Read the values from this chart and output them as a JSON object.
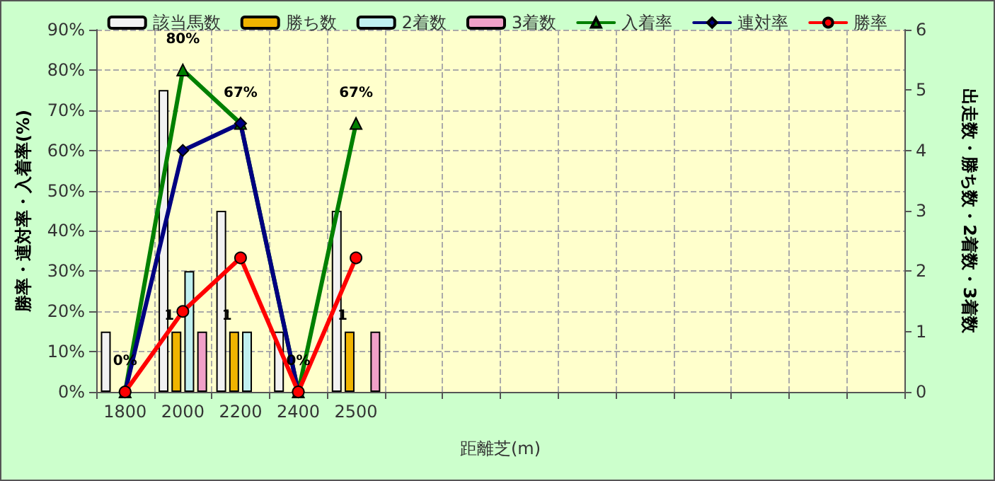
{
  "chart_data": {
    "type": "bar",
    "xlabel": "距離芝(m)",
    "ylabel": "勝率・連対率・入着率(%)",
    "y2label": "出走数・勝ち数・2着数・3着数",
    "categories": [
      "1800",
      "2000",
      "2200",
      "2400",
      "2500",
      null,
      null,
      null,
      null,
      null,
      null,
      null,
      null,
      null
    ],
    "series": [
      {
        "name": "該当馬数",
        "axis": "y2",
        "color": "#f2f2f2",
        "values": [
          1,
          5,
          3,
          1,
          3,
          null,
          null,
          null,
          null,
          null,
          null,
          null,
          null,
          null
        ]
      },
      {
        "name": "勝ち数",
        "axis": "y2",
        "color": "#f0b400",
        "values": [
          0,
          1,
          1,
          0,
          1,
          null,
          null,
          null,
          null,
          null,
          null,
          null,
          null,
          null
        ],
        "value_labels": [
          null,
          "1",
          "1",
          null,
          "1",
          null,
          null,
          null,
          null,
          null,
          null,
          null,
          null,
          null
        ]
      },
      {
        "name": "2着数",
        "axis": "y2",
        "color": "#c0f0f0",
        "values": [
          0,
          2,
          1,
          0,
          0,
          null,
          null,
          null,
          null,
          null,
          null,
          null,
          null,
          null
        ]
      },
      {
        "name": "3着数",
        "axis": "y2",
        "color": "#f0a0c8",
        "values": [
          0,
          1,
          0,
          0,
          1,
          null,
          null,
          null,
          null,
          null,
          null,
          null,
          null,
          null
        ]
      },
      {
        "name": "入着率",
        "type": "line",
        "color": "#008000",
        "marker": "triangle",
        "values": [
          0,
          80,
          66.7,
          0,
          66.7,
          null,
          null,
          null,
          null,
          null,
          null,
          null,
          null,
          null
        ],
        "value_labels": [
          "0%",
          "80%",
          "67%",
          "0%",
          "67%",
          null,
          null,
          null,
          null,
          null,
          null,
          null,
          null,
          null
        ]
      },
      {
        "name": "連対率",
        "type": "line",
        "color": "#000080",
        "marker": "diamond",
        "values": [
          0,
          60,
          66.7,
          0,
          null,
          null,
          null,
          null,
          null,
          null,
          null,
          null,
          null,
          null
        ]
      },
      {
        "name": "勝率",
        "type": "line",
        "color": "#ff0000",
        "marker": "circle",
        "values": [
          0,
          20,
          33.3,
          0,
          33.3,
          null,
          null,
          null,
          null,
          null,
          null,
          null,
          null,
          null
        ]
      }
    ],
    "ylim": [
      0,
      90
    ],
    "yticks": [
      {
        "value": 0,
        "label": "0%"
      },
      {
        "value": 10,
        "label": "10%"
      },
      {
        "value": 20,
        "label": "20%"
      },
      {
        "value": 30,
        "label": "30%"
      },
      {
        "value": 40,
        "label": "40%"
      },
      {
        "value": 50,
        "label": "50%"
      },
      {
        "value": 60,
        "label": "60%"
      },
      {
        "value": 70,
        "label": "70%"
      },
      {
        "value": 80,
        "label": "80%"
      },
      {
        "value": 90,
        "label": "90%"
      }
    ],
    "y2lim": [
      0,
      6
    ],
    "y2ticks": [
      0,
      1,
      2,
      3,
      4,
      5,
      6
    ],
    "grid": true,
    "legend": "top"
  }
}
